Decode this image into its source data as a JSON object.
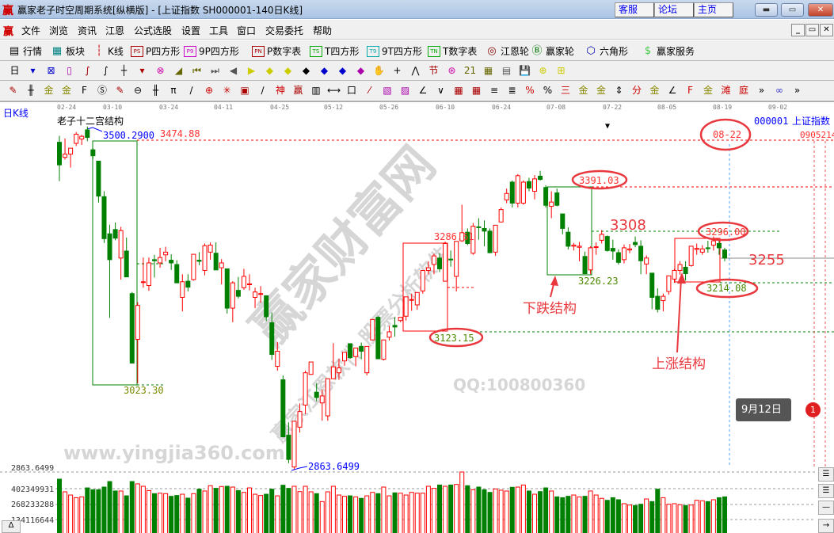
{
  "window": {
    "logo": "赢",
    "title": "赢家老子时空周期系统[纵横版] - [上证指数  SH000001-140日K线]",
    "links": [
      "客服",
      "论坛",
      "主页"
    ],
    "controls": [
      "minimize",
      "maximize",
      "close"
    ]
  },
  "menu": {
    "logo": "赢",
    "items": [
      "文件",
      "浏览",
      "资讯",
      "江恩",
      "公式选股",
      "设置",
      "工具",
      "窗口",
      "交易委托",
      "帮助"
    ],
    "mdi_controls": [
      "_",
      "▭",
      "✕"
    ]
  },
  "toolbar": {
    "items": [
      {
        "icon": "quotes-table-icon",
        "glyph": "▤",
        "label": "行情"
      },
      {
        "icon": "sector-grid-icon",
        "glyph": "▦",
        "label": "板块"
      },
      {
        "icon": "candlestick-icon",
        "glyph": "┆",
        "label": "K线"
      },
      {
        "icon": "ps-icon",
        "glyph": "PS",
        "label": "P四方形"
      },
      {
        "icon": "p9-icon",
        "glyph": "P9",
        "label": "9P四方形"
      },
      {
        "icon": "pn-icon",
        "glyph": "PN",
        "label": "P数字表"
      },
      {
        "icon": "ts-icon",
        "glyph": "TS",
        "label": "T四方形"
      },
      {
        "icon": "t9-icon",
        "glyph": "T9",
        "label": "9T四方形"
      },
      {
        "icon": "tn-icon",
        "glyph": "TN",
        "label": "T数字表"
      },
      {
        "icon": "gann-wheel-icon",
        "glyph": "◎",
        "label": "江恩轮"
      },
      {
        "icon": "big-wheel-icon",
        "glyph": "Ⓑ",
        "label": "赢家轮"
      },
      {
        "icon": "hexagon-icon",
        "glyph": "⬡",
        "label": "六角形"
      },
      {
        "icon": "dollar-icon",
        "glyph": "$",
        "label": "赢家服务"
      }
    ]
  },
  "iconbar1": [
    "日",
    "▾",
    "⊠",
    "▯",
    "∫",
    "∫",
    "┼",
    "▾",
    "⊗",
    "◢",
    "⏮",
    "⏭",
    "◀",
    "▶",
    "◆",
    "◆",
    "◆",
    "◆",
    "◆",
    "◆",
    "✋",
    "+",
    "⋀",
    "节",
    "⊛",
    "21",
    "▦",
    "▤",
    "💾",
    "⊕",
    "⊞"
  ],
  "iconbar2": [
    "✎",
    "╫",
    "金",
    "金",
    "F",
    "Ⓢ",
    "✎",
    "⊖",
    "╫",
    "π",
    "∕",
    "⊕",
    "✳",
    "▣",
    "∕",
    "神",
    "赢",
    "▥",
    "⟷",
    "口",
    "⁄",
    "▧",
    "▨",
    "∠",
    "∨",
    "▦",
    "▦",
    "≡",
    "≣",
    "%",
    "%",
    "三",
    "金",
    "金",
    "⇕",
    "分",
    "金",
    "∠",
    "F",
    "金",
    "滩",
    "庭",
    "»",
    "∞",
    "»"
  ],
  "chart": {
    "period_label": "日K线",
    "formula_title": "老子十二宫结构",
    "symbol_code": "000001",
    "symbol_name": "上证指数",
    "right_edge_label": "0905214",
    "dates": [
      "02-24",
      "03-10",
      "03-24",
      "04-11",
      "04-25",
      "05-12",
      "05-26",
      "06-10",
      "06-24",
      "07-08",
      "07-22",
      "08-05",
      "08-19",
      "09-02"
    ],
    "price_axis_label": "2863.6499",
    "volume_axis_labels": [
      "402349931",
      "268233288",
      "134116644"
    ],
    "annotations": {
      "high_label": "3500.2900",
      "high_line_label": "3474.88",
      "box1_low": "3023.30",
      "low_label": "2863.6499",
      "box2_high": "3286.61",
      "box2_low": "3123.15",
      "box3_high": "3391.03",
      "box3_low": "3226.23",
      "level_3308": "3308",
      "level_3255": "3255",
      "box4_high": "3296.00",
      "box4_low": "3214.08",
      "date_marker": "08-22",
      "down_structure": "下跌结构",
      "up_structure": "上涨结构"
    },
    "watermark": {
      "main": "赢家财富网",
      "sub": "赢家江恩软件 股票分析软件",
      "url": "www.yingjia360.com",
      "qq": "QQ:100800360"
    },
    "tooltip": {
      "text": "9月12日",
      "badge": "1"
    },
    "colors": {
      "up": "#ff0000",
      "down": "#008000",
      "annotation_red": "#e8383d",
      "axis_blue": "#0000ff"
    }
  },
  "chart_data": {
    "type": "candlestick",
    "title": "老子十二宫结构",
    "series_name": "上证指数",
    "ohlc": [
      [
        3471,
        3483,
        3399,
        3429
      ],
      [
        3443,
        3478,
        3439,
        3449
      ],
      [
        3449,
        3460,
        3424,
        3460
      ],
      [
        3469,
        3490,
        3464,
        3486
      ],
      [
        3477,
        3485,
        3466,
        3482
      ],
      [
        3494,
        3500.29,
        3473,
        3480
      ],
      [
        3457,
        3460,
        3440,
        3446
      ],
      [
        3436,
        3436,
        3359,
        3371
      ],
      [
        3370,
        3380,
        3284,
        3292
      ],
      [
        3301,
        3318,
        3145,
        3253
      ],
      [
        3309,
        3322,
        3289,
        3293
      ],
      [
        3256,
        3314,
        3216,
        3307
      ],
      [
        3269,
        3294,
        3221,
        3221
      ],
      [
        3190,
        3193,
        3061,
        3061
      ],
      [
        3105,
        3174,
        3023.3,
        3168
      ],
      [
        3211,
        3257,
        3201,
        3212
      ],
      [
        3205,
        3257,
        3195,
        3247
      ],
      [
        3253,
        3262,
        3220,
        3251
      ],
      [
        3247,
        3275,
        3238,
        3257
      ],
      [
        3262,
        3277,
        3250,
        3267
      ],
      [
        3252,
        3263,
        3234,
        3247
      ],
      [
        3244,
        3252,
        3210,
        3210
      ],
      [
        3183,
        3226,
        3157,
        3212
      ],
      [
        3213,
        3226,
        3194,
        3202
      ],
      [
        3216,
        3263,
        3214,
        3263
      ],
      [
        3252,
        3267,
        3243,
        3250
      ],
      [
        3233,
        3283,
        3224,
        3279
      ],
      [
        3267,
        3285,
        3253,
        3280
      ],
      [
        3265,
        3285,
        3234,
        3234
      ],
      [
        3238,
        3254,
        3207,
        3247
      ],
      [
        3236,
        3236,
        3153,
        3163
      ],
      [
        3163,
        3213,
        3137,
        3210
      ],
      [
        3196,
        3221,
        3181,
        3185
      ],
      [
        3201,
        3236,
        3197,
        3222
      ],
      [
        3207,
        3226,
        3196,
        3208
      ],
      [
        3183,
        3201,
        3163,
        3193
      ],
      [
        3189,
        3204,
        3173,
        3190
      ],
      [
        3186,
        3186,
        3139,
        3147
      ],
      [
        3136,
        3155,
        3067,
        3077
      ],
      [
        3055,
        3100,
        3047,
        3083
      ],
      [
        3030,
        3038,
        2924,
        2924
      ],
      [
        2927,
        2951,
        2875,
        2882
      ],
      [
        2868,
        2953,
        2863.65,
        2953
      ],
      [
        2942,
        2986,
        2932,
        2971
      ],
      [
        2983,
        3047,
        2966,
        3043
      ],
      [
        3040,
        3063,
        3039,
        3063
      ],
      [
        3007,
        3024,
        2990,
        2997
      ],
      [
        2987,
        3012,
        2954,
        3000
      ],
      [
        2963,
        3032,
        2954,
        3032
      ],
      [
        3032,
        3098,
        3032,
        3054
      ],
      [
        3043,
        3069,
        3030,
        3052
      ],
      [
        3065,
        3081,
        3056,
        3081
      ],
      [
        3097,
        3097,
        3069,
        3071
      ],
      [
        3073,
        3089,
        3055,
        3089
      ],
      [
        3092,
        3099,
        3068,
        3083
      ],
      [
        3043,
        3092,
        3038,
        3092
      ],
      [
        3104,
        3142,
        3104,
        3142
      ],
      [
        3146,
        3148,
        3069,
        3069
      ],
      [
        3068,
        3104,
        3066,
        3104
      ],
      [
        3109,
        3130,
        3103,
        3119
      ],
      [
        3131,
        3146,
        3110,
        3128
      ],
      [
        3140,
        3146,
        3137,
        3146
      ],
      [
        3148,
        3184,
        3140,
        3184
      ],
      [
        3178,
        3190,
        3158,
        3179
      ],
      [
        3169,
        3192,
        3160,
        3192
      ],
      [
        3195,
        3233,
        3190,
        3233
      ],
      [
        3233,
        3250,
        3225,
        3238
      ],
      [
        3244,
        3264,
        3226,
        3260
      ],
      [
        3256,
        3265,
        3230,
        3236
      ],
      [
        3213,
        3286.61,
        3213,
        3283
      ],
      [
        3254,
        3270,
        3240,
        3253
      ],
      [
        3222,
        3287,
        3194,
        3287
      ],
      [
        3288,
        3355,
        3286,
        3303
      ],
      [
        3304,
        3311,
        3280,
        3283
      ],
      [
        3265,
        3321,
        3262,
        3315
      ],
      [
        3314,
        3330,
        3290,
        3313
      ],
      [
        3311,
        3326,
        3278,
        3306
      ],
      [
        3306,
        3311,
        3265,
        3266
      ],
      [
        3267,
        3317,
        3260,
        3317
      ],
      [
        3323,
        3350,
        3322,
        3346
      ],
      [
        3364,
        3385,
        3358,
        3376
      ],
      [
        3397,
        3400,
        3350,
        3358
      ],
      [
        3358,
        3412,
        3350,
        3409
      ],
      [
        3358,
        3400,
        3355,
        3397
      ],
      [
        3398,
        3405,
        3380,
        3386
      ],
      [
        3380,
        3410,
        3365,
        3403
      ],
      [
        3408,
        3418,
        3400,
        3402
      ],
      [
        3387,
        3391.03,
        3350,
        3354
      ],
      [
        3352,
        3380,
        3330,
        3360
      ],
      [
        3377,
        3385,
        3352,
        3354
      ],
      [
        3338,
        3338,
        3300,
        3311
      ],
      [
        3304,
        3313,
        3272,
        3278
      ],
      [
        3278,
        3284,
        3270,
        3280
      ],
      [
        3276,
        3286,
        3250,
        3278
      ],
      [
        3259,
        3268,
        3226.23,
        3227
      ],
      [
        3234,
        3278,
        3226,
        3275
      ],
      [
        3276,
        3285,
        3262,
        3277
      ],
      [
        3289,
        3308,
        3283,
        3300
      ],
      [
        3296,
        3298,
        3268,
        3270
      ],
      [
        3274,
        3290,
        3253,
        3269
      ],
      [
        3266,
        3272,
        3244,
        3248
      ],
      [
        3253,
        3281,
        3246,
        3275
      ],
      [
        3271,
        3282,
        3265,
        3273
      ],
      [
        3285,
        3296,
        3276,
        3281
      ],
      [
        3278,
        3289,
        3226,
        3251
      ],
      [
        3245,
        3261,
        3226,
        3256
      ],
      [
        3228,
        3228,
        3161,
        3183
      ],
      [
        3185,
        3200,
        3155,
        3161
      ],
      [
        3177,
        3190,
        3157,
        3185
      ],
      [
        3194,
        3223,
        3188,
        3223
      ],
      [
        3217,
        3236,
        3210,
        3233
      ],
      [
        3233,
        3250,
        3225,
        3244
      ],
      [
        3239,
        3250,
        3214.08,
        3227
      ],
      [
        3242,
        3278,
        3240,
        3278
      ],
      [
        3272,
        3283,
        3262,
        3274
      ],
      [
        3267,
        3280,
        3262,
        3273
      ],
      [
        3275,
        3288,
        3266,
        3274
      ],
      [
        3280,
        3296,
        3270,
        3288
      ],
      [
        3283,
        3288,
        3262,
        3275
      ],
      [
        3271,
        3275,
        3250,
        3256
      ]
    ],
    "volume": [
      485000000,
      375000000,
      347000000,
      324000000,
      331000000,
      409000000,
      393000000,
      393000000,
      416000000,
      464000000,
      382000000,
      382000000,
      340000000,
      464000000,
      444000000,
      423000000,
      386000000,
      359000000,
      363000000,
      359000000,
      336000000,
      343000000,
      354000000,
      320000000,
      359000000,
      398000000,
      382000000,
      428000000,
      405000000,
      421000000,
      423000000,
      416000000,
      386000000,
      370000000,
      409000000,
      354000000,
      343000000,
      354000000,
      398000000,
      340000000,
      432000000,
      405000000,
      423000000,
      377000000,
      423000000,
      375000000,
      359000000,
      290000000,
      375000000,
      423000000,
      347000000,
      336000000,
      340000000,
      331000000,
      318000000,
      340000000,
      370000000,
      359000000,
      416000000,
      340000000,
      366000000,
      363000000,
      347000000,
      370000000,
      363000000,
      363000000,
      423000000,
      405000000,
      434000000,
      423000000,
      434000000,
      439000000,
      547000000,
      428000000,
      393000000,
      416000000,
      393000000,
      370000000,
      400000000,
      389000000,
      382000000,
      414000000,
      416000000,
      434000000,
      382000000,
      354000000,
      377000000,
      409000000,
      382000000,
      331000000,
      324000000,
      336000000,
      347000000,
      331000000,
      336000000,
      382000000,
      347000000,
      318000000,
      301000000,
      324000000,
      306000000,
      272000000,
      260000000,
      256000000,
      267000000,
      313000000,
      290000000,
      398000000,
      324000000,
      267000000,
      272000000,
      263000000,
      256000000,
      260000000,
      301000000,
      297000000,
      290000000,
      306000000,
      324000000,
      331000000
    ],
    "x_tick_labels": [
      "02-24",
      "03-10",
      "03-24",
      "04-11",
      "04-25",
      "05-12",
      "05-26",
      "06-10",
      "06-24",
      "07-08",
      "07-22",
      "08-05",
      "08-19",
      "09-02"
    ],
    "ylim": [
      2863.6499,
      3500.29
    ],
    "levels": [
      3474.88,
      3391.03,
      3308,
      3296.0,
      3255,
      3214.08,
      3123.15
    ],
    "grid": false
  }
}
